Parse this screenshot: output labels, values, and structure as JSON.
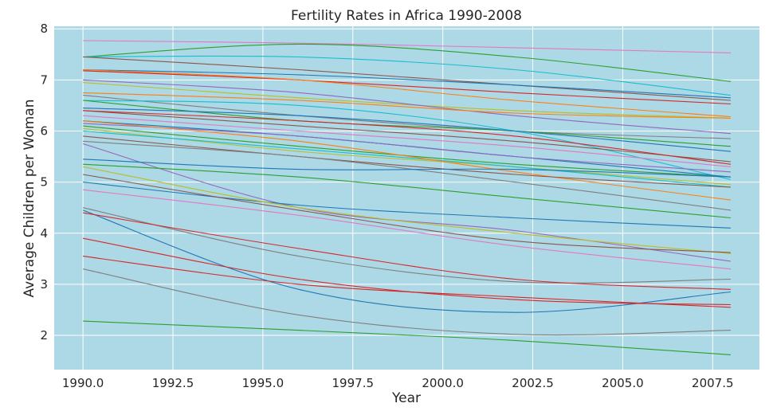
{
  "chart_data": {
    "type": "line",
    "title": "Fertility Rates in Africa 1990-2008",
    "xlabel": "Year",
    "ylabel": "Average Children per Woman",
    "xlim": [
      1989.2,
      2008.8
    ],
    "ylim": [
      1.33,
      8.05
    ],
    "x_ticks": [
      1990.0,
      1992.5,
      1995.0,
      1997.5,
      2000.0,
      2002.5,
      2005.0,
      2007.5
    ],
    "x_tick_labels": [
      "1990.0",
      "1992.5",
      "1995.0",
      "1997.5",
      "2000.0",
      "2002.5",
      "2005.0",
      "2007.5"
    ],
    "y_ticks": [
      2,
      3,
      4,
      5,
      6,
      7,
      8
    ],
    "y_tick_labels": [
      "2",
      "3",
      "4",
      "5",
      "6",
      "7",
      "8"
    ],
    "grid": true,
    "plot_background": "#add8e6",
    "grid_color": "#ffffff",
    "x_years": [
      1990,
      1996,
      2002,
      2008
    ],
    "series": [
      {
        "color": "#e377c2",
        "values": [
          7.77,
          7.72,
          7.63,
          7.53
        ]
      },
      {
        "color": "#2ca02c",
        "values": [
          7.45,
          7.7,
          7.45,
          6.97
        ]
      },
      {
        "color": "#17becf",
        "values": [
          7.45,
          7.45,
          7.2,
          6.7
        ]
      },
      {
        "color": "#8c564b",
        "values": [
          7.45,
          7.2,
          6.9,
          6.6
        ]
      },
      {
        "color": "#1f77b4",
        "values": [
          7.2,
          7.1,
          6.9,
          6.65
        ]
      },
      {
        "color": "#d62728",
        "values": [
          7.18,
          7.0,
          6.75,
          6.53
        ]
      },
      {
        "color": "#ff7f0e",
        "values": [
          7.2,
          7.0,
          6.6,
          6.28
        ]
      },
      {
        "color": "#bcbd22",
        "values": [
          6.95,
          6.65,
          6.4,
          6.25
        ]
      },
      {
        "color": "#9467bd",
        "values": [
          7.0,
          6.75,
          6.3,
          5.95
        ]
      },
      {
        "color": "#ff7f0e",
        "values": [
          6.75,
          6.6,
          6.35,
          6.25
        ]
      },
      {
        "color": "#7f7f7f",
        "values": [
          6.7,
          6.3,
          6.0,
          5.85
        ]
      },
      {
        "color": "#17becf",
        "values": [
          6.6,
          6.5,
          6.0,
          5.05
        ]
      },
      {
        "color": "#2ca02c",
        "values": [
          6.6,
          6.2,
          6.0,
          5.7
        ]
      },
      {
        "color": "#1f77b4",
        "values": [
          6.45,
          6.3,
          6.0,
          5.6
        ]
      },
      {
        "color": "#8c564b",
        "values": [
          6.4,
          6.1,
          5.8,
          5.4
        ]
      },
      {
        "color": "#d62728",
        "values": [
          6.4,
          6.2,
          5.9,
          5.35
        ]
      },
      {
        "color": "#e377c2",
        "values": [
          6.3,
          6.0,
          5.7,
          5.3
        ]
      },
      {
        "color": "#1f77b4",
        "values": [
          6.2,
          5.9,
          5.5,
          5.1
        ]
      },
      {
        "color": "#9467bd",
        "values": [
          6.15,
          5.9,
          5.5,
          5.2
        ]
      },
      {
        "color": "#2ca02c",
        "values": [
          6.1,
          5.7,
          5.35,
          5.1
        ]
      },
      {
        "color": "#bcbd22",
        "values": [
          6.05,
          5.6,
          5.3,
          4.95
        ]
      },
      {
        "color": "#17becf",
        "values": [
          6.0,
          5.65,
          5.3,
          4.9
        ]
      },
      {
        "color": "#ff7f0e",
        "values": [
          6.2,
          5.8,
          5.2,
          4.65
        ]
      },
      {
        "color": "#8c564b",
        "values": [
          5.9,
          5.5,
          5.15,
          4.9
        ]
      },
      {
        "color": "#7f7f7f",
        "values": [
          5.8,
          5.5,
          5.0,
          4.45
        ]
      },
      {
        "color": "#9467bd",
        "values": [
          5.75,
          4.5,
          4.05,
          3.45
        ]
      },
      {
        "color": "#2ca02c",
        "values": [
          5.35,
          5.1,
          4.7,
          4.3
        ]
      },
      {
        "color": "#1f77b4",
        "values": [
          5.45,
          5.25,
          5.25,
          5.1
        ]
      },
      {
        "color": "#1f77b4",
        "values": [
          5.0,
          4.55,
          4.3,
          4.1
        ]
      },
      {
        "color": "#bcbd22",
        "values": [
          5.3,
          4.5,
          4.0,
          3.6
        ]
      },
      {
        "color": "#8c564b",
        "values": [
          5.15,
          4.45,
          3.85,
          3.62
        ]
      },
      {
        "color": "#e377c2",
        "values": [
          4.85,
          4.35,
          3.75,
          3.3
        ]
      },
      {
        "color": "#7f7f7f",
        "values": [
          4.5,
          3.55,
          3.05,
          3.1
        ]
      },
      {
        "color": "#1f77b4",
        "values": [
          4.45,
          2.9,
          2.45,
          2.85
        ]
      },
      {
        "color": "#d62728",
        "values": [
          4.4,
          3.7,
          3.1,
          2.9
        ]
      },
      {
        "color": "#d62728",
        "values": [
          3.9,
          3.1,
          2.7,
          2.6
        ]
      },
      {
        "color": "#d62728",
        "values": [
          3.55,
          3.0,
          2.75,
          2.55
        ]
      },
      {
        "color": "#7f7f7f",
        "values": [
          3.3,
          2.4,
          2.02,
          2.1
        ]
      },
      {
        "color": "#2ca02c",
        "values": [
          2.28,
          2.1,
          1.9,
          1.62
        ]
      }
    ]
  }
}
